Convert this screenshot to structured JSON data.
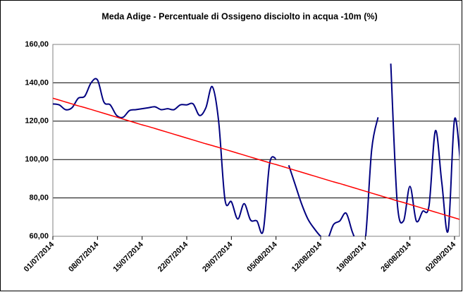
{
  "chart_data": {
    "type": "line",
    "title": "Meda Adige - Percentuale di Ossigeno disciolto in acqua -10m (%)",
    "categories": [
      "01/07/2014",
      null,
      null,
      null,
      null,
      null,
      null,
      "08/07/2014",
      null,
      null,
      null,
      null,
      null,
      null,
      "15/07/2014",
      null,
      null,
      null,
      null,
      null,
      null,
      "22/07/2014",
      null,
      null,
      null,
      null,
      null,
      null,
      "29/07/2014",
      null,
      null,
      null,
      null,
      null,
      null,
      "05/08/2014",
      null,
      null,
      null,
      null,
      null,
      null,
      "12/08/2014",
      null,
      null,
      null,
      null,
      null,
      null,
      "19/08/2014",
      null,
      null,
      null,
      null,
      null,
      null,
      "26/08/2014",
      null,
      null,
      null,
      null,
      null,
      null,
      "02/09/2014",
      null
    ],
    "series": [
      {
        "color": "#000080",
        "values": [
          129,
          128.5,
          126,
          127,
          132,
          133,
          140,
          141.5,
          130,
          128.5,
          123,
          122,
          125.5,
          126,
          126.5,
          127,
          127.5,
          126,
          126.5,
          126,
          128.5,
          128.5,
          129,
          123,
          127,
          138,
          120,
          79,
          78,
          69,
          77,
          68.5,
          68,
          63,
          98,
          100.5,
          null,
          97,
          87,
          77,
          69,
          64,
          60,
          58,
          66,
          68,
          72,
          62,
          55,
          58,
          105,
          122,
          null,
          150,
          78,
          68,
          86,
          68,
          73,
          76,
          115,
          88,
          63,
          121,
          95
        ]
      },
      {
        "color": "#ff0000",
        "values": [
          132.0,
          131.0,
          130.0,
          129.0,
          128.0,
          127.1,
          126.1,
          125.1,
          124.1,
          123.1,
          122.1,
          121.1,
          120.1,
          119.1,
          118.1,
          117.2,
          116.2,
          115.2,
          114.2,
          113.2,
          112.2,
          111.2,
          110.2,
          109.2,
          108.2,
          107.3,
          106.3,
          105.3,
          104.3,
          103.3,
          102.3,
          101.3,
          100.3,
          99.3,
          98.3,
          97.4,
          96.4,
          95.4,
          94.4,
          93.4,
          92.4,
          91.4,
          90.4,
          89.4,
          88.4,
          87.5,
          86.5,
          85.5,
          84.5,
          83.5,
          82.5,
          81.5,
          80.5,
          79.5,
          78.5,
          77.6,
          76.6,
          75.6,
          74.6,
          73.6,
          72.6,
          71.6,
          70.6,
          69.6,
          68.6
        ]
      }
    ],
    "ylim": [
      60,
      160
    ],
    "yticks": [
      {
        "value": 60,
        "label": "60,00"
      },
      {
        "value": 80,
        "label": "80,00"
      },
      {
        "value": 100,
        "label": "100,00"
      },
      {
        "value": 120,
        "label": "120,00"
      },
      {
        "value": 140,
        "label": "140,00"
      },
      {
        "value": 160,
        "label": "160,00"
      }
    ],
    "grid": true
  }
}
